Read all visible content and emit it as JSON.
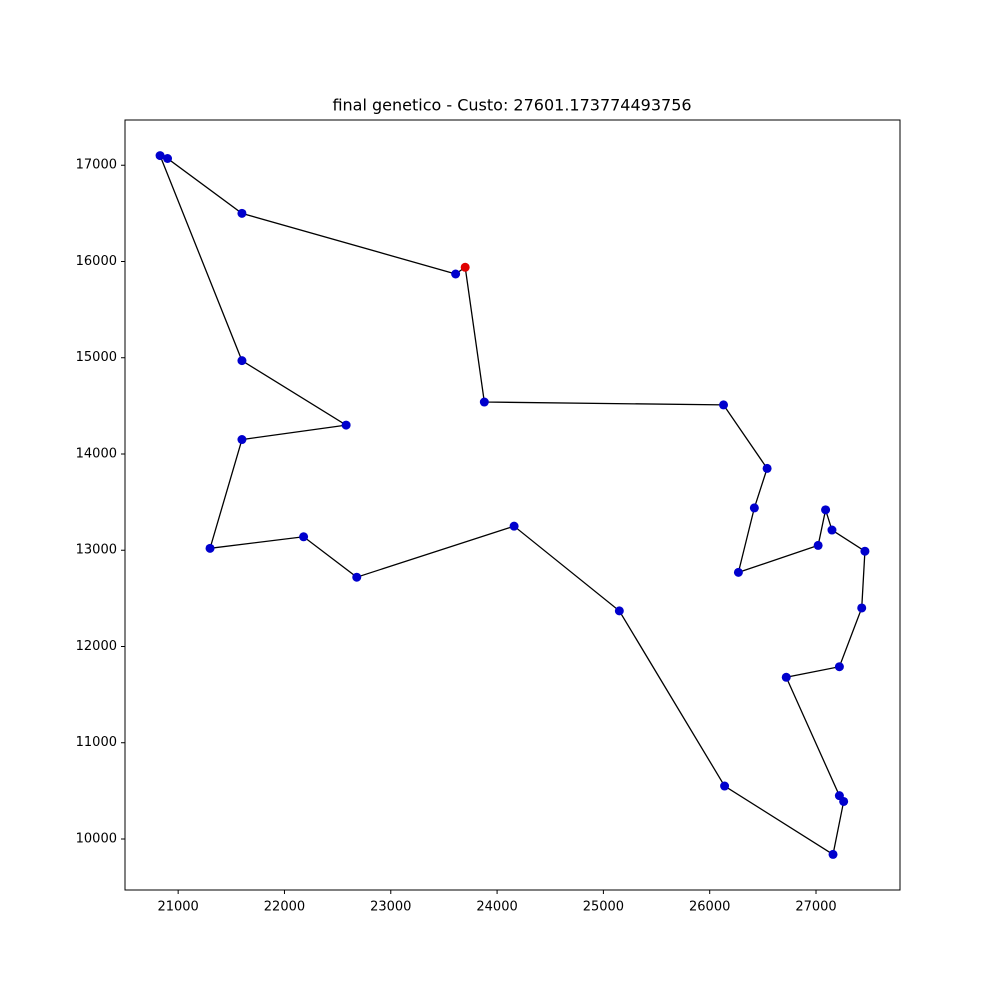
{
  "chart_data": {
    "type": "line",
    "title": "final genetico - Custo: 27601.173774493756",
    "series": [
      {
        "color": "#000000",
        "marker_color": "#0000cd",
        "start_color": "#e00000",
        "closed": true,
        "x": [
          23700,
          23880,
          26130,
          26540,
          26420,
          26270,
          27020,
          27090,
          27150,
          27460,
          27430,
          27220,
          26720,
          27220,
          27260,
          27160,
          26140,
          25150,
          24160,
          22680,
          22180,
          21300,
          21600,
          22580,
          21600,
          20830,
          20900,
          21600,
          23610
        ],
        "values": [
          15940,
          14540,
          14510,
          13850,
          13440,
          12770,
          13050,
          13420,
          13210,
          12990,
          12400,
          11790,
          11680,
          10450,
          10390,
          9840,
          10550,
          12370,
          13250,
          12720,
          13140,
          13020,
          14150,
          14300,
          14970,
          17100,
          17070,
          16500,
          15870
        ]
      }
    ],
    "xlim": [
      20500,
      27790
    ],
    "ylim": [
      9470,
      17470
    ],
    "xticks": [
      21000,
      22000,
      23000,
      24000,
      25000,
      26000,
      27000
    ],
    "yticks": [
      10000,
      11000,
      12000,
      13000,
      14000,
      15000,
      16000,
      17000
    ]
  }
}
